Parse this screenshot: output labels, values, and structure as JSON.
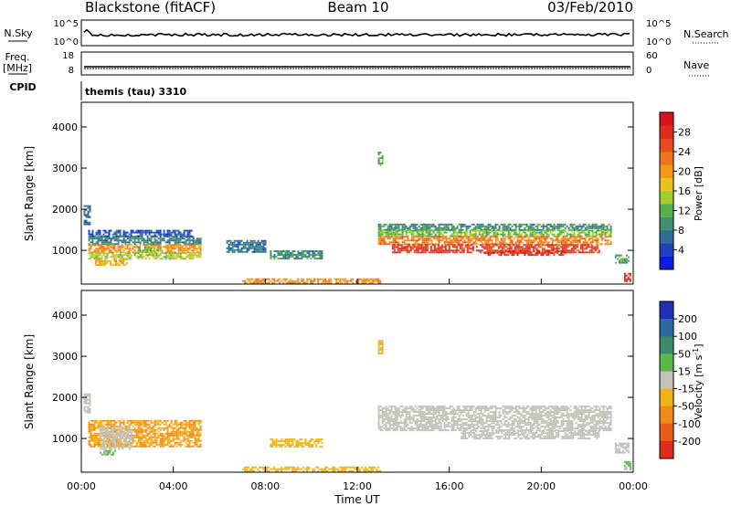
{
  "header": {
    "station": "Blackstone (fitACF)",
    "beam": "Beam 10",
    "date": "03/Feb/2010"
  },
  "strips": {
    "nsky": {
      "label": "N.Sky",
      "left_ticks": [
        "10^5",
        "10^0"
      ]
    },
    "nsearch": {
      "label": "N.Search",
      "right_ticks": [
        "10^5",
        "10^0"
      ]
    },
    "freq": {
      "label_line1": "Freq.",
      "label_line2": "[MHz]",
      "left_ticks": [
        "18",
        "8"
      ]
    },
    "nave": {
      "label": "Nave",
      "right_ticks": [
        "60",
        "0"
      ]
    },
    "cpid": {
      "label": "CPID",
      "value": "themis (tau) 3310"
    }
  },
  "colorbars": {
    "power": {
      "label": "Power [dB]",
      "ticks": [
        "4",
        "8",
        "12",
        "16",
        "20",
        "24",
        "28"
      ],
      "colors": [
        "#0d1aee",
        "#1e3fbf",
        "#2f6e99",
        "#3e9070",
        "#55b04a",
        "#9fce2e",
        "#e8c21e",
        "#f49a18",
        "#f0741c",
        "#e84a1f",
        "#e02a1c",
        "#d8141a"
      ]
    },
    "velocity": {
      "label": "Velocity [m s",
      "label_sup": "-1",
      "label_end": "]",
      "ticks": [
        "200",
        "100",
        "50",
        "15",
        "-15",
        "-50",
        "-100",
        "-200"
      ],
      "colors": [
        "#1e2fb8",
        "#2e68a0",
        "#3c8a6a",
        "#58b848",
        "#c2c2ba",
        "#f0b418",
        "#f28a18",
        "#ee5a1c",
        "#e02a1a"
      ]
    }
  },
  "chart_data": [
    {
      "type": "heatmap",
      "panel": "power",
      "ylabel": "Slant Range [km]",
      "ylim": [
        180,
        4600
      ],
      "yticks": [
        "1000",
        "2000",
        "3000",
        "4000"
      ],
      "xlim": [
        0,
        24
      ],
      "series": [
        {
          "values": [
            [
              0.3,
              5.2,
              1150,
              1350,
              7
            ],
            [
              0.3,
              5.2,
              950,
              1150,
              20
            ],
            [
              0.3,
              5.2,
              800,
              950,
              14
            ],
            [
              0.3,
              4.8,
              1350,
              1500,
              4
            ],
            [
              0.1,
              0.4,
              1650,
              2100,
              6
            ],
            [
              0.6,
              2.0,
              650,
              800,
              18
            ],
            [
              2.5,
              3.5,
              1000,
              1100,
              12
            ],
            [
              8.2,
              10.5,
              780,
              1000,
              8
            ],
            [
              6.3,
              8.0,
              950,
              1250,
              6
            ],
            [
              12.9,
              13.1,
              3050,
              3400,
              10
            ],
            [
              12.9,
              23.0,
              1500,
              1650,
              8
            ],
            [
              12.9,
              23.0,
              1350,
              1500,
              12
            ],
            [
              12.9,
              23.0,
              1150,
              1350,
              21
            ],
            [
              13.5,
              22.5,
              950,
              1150,
              26
            ],
            [
              17.5,
              21.0,
              900,
              1000,
              27
            ],
            [
              23.2,
              23.8,
              700,
              900,
              10
            ],
            [
              23.6,
              23.9,
              250,
              450,
              28
            ],
            [
              7.0,
              13.0,
              200,
              320,
              20
            ]
          ]
        }
      ]
    },
    {
      "type": "heatmap",
      "panel": "velocity",
      "ylabel": "Slant Range [km]",
      "ylim": [
        180,
        4600
      ],
      "yticks": [
        "1000",
        "2000",
        "3000",
        "4000"
      ],
      "xlim": [
        0,
        24
      ],
      "xlabel": "Time UT",
      "xticks": [
        "00:00",
        "04:00",
        "08:00",
        "12:00",
        "16:00",
        "20:00",
        "00:00"
      ],
      "series": [
        {
          "values": [
            [
              0.3,
              5.2,
              800,
              1450,
              -50
            ],
            [
              0.8,
              2.2,
              750,
              1300,
              0
            ],
            [
              0.1,
              0.4,
              1650,
              2100,
              0
            ],
            [
              0.8,
              1.5,
              620,
              720,
              20
            ],
            [
              8.2,
              10.5,
              800,
              1000,
              -40
            ],
            [
              12.9,
              13.1,
              3050,
              3400,
              -20
            ],
            [
              12.9,
              23.0,
              1200,
              1800,
              0
            ],
            [
              16.5,
              22.5,
              1000,
              1200,
              0
            ],
            [
              23.2,
              23.8,
              650,
              900,
              0
            ],
            [
              23.6,
              23.9,
              250,
              450,
              20
            ],
            [
              7.0,
              13.0,
              200,
              320,
              -30
            ]
          ]
        }
      ]
    }
  ]
}
